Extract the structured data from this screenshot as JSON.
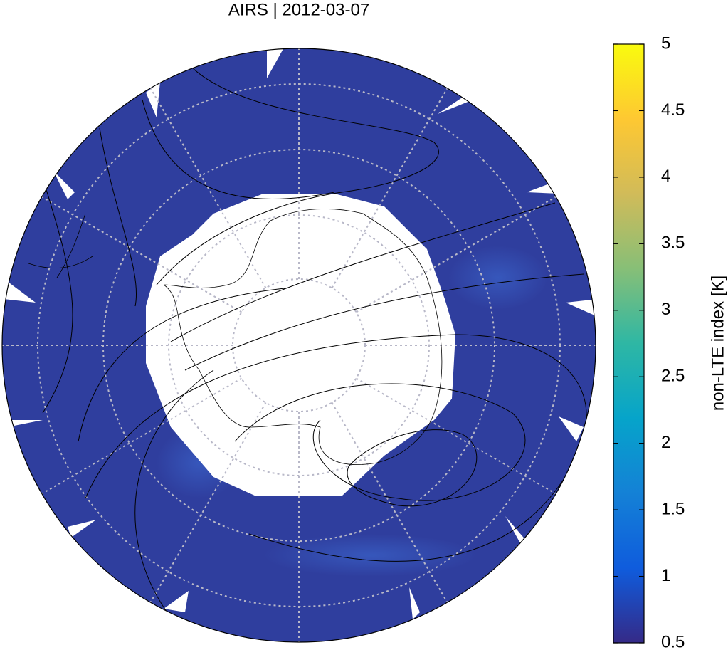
{
  "title": "AIRS | 2012-03-07",
  "colorbar": {
    "label": "non-LTE index [K]",
    "lim": [
      0.5,
      5
    ],
    "ticks": [
      0.5,
      1,
      1.5,
      2,
      2.5,
      3,
      3.5,
      4,
      4.5,
      5
    ],
    "colormap": [
      "#352a87",
      "#0f5cdd",
      "#1481d6",
      "#06a4ca",
      "#2eb7a4",
      "#87bf77",
      "#d1bb59",
      "#fec832",
      "#f9fb0e"
    ]
  }
}
